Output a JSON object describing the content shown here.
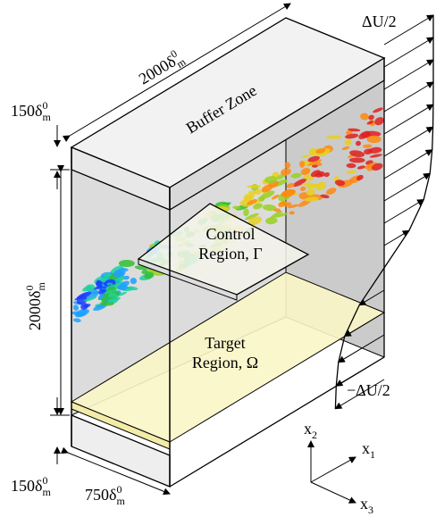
{
  "dimensions": {
    "streamwise": {
      "base": "2000δ",
      "sub": "m",
      "sup": "0"
    },
    "buffer_top": {
      "base": "150δ",
      "sub": "m",
      "sup": "0"
    },
    "height": {
      "base": "2000δ",
      "sub": "m",
      "sup": "0"
    },
    "buffer_bottom": {
      "base": "150δ",
      "sub": "m",
      "sup": "0"
    },
    "spanwise": {
      "base": "750δ",
      "sub": "m",
      "sup": "0"
    }
  },
  "velocity": {
    "top": "ΔU/2",
    "bottom": "−ΔU/2"
  },
  "regions": {
    "buffer": "Buffer Zone",
    "control": [
      "Control",
      "Region, Γ"
    ],
    "target": [
      "Target",
      "Region, Ω"
    ]
  },
  "axes": {
    "x2": {
      "base": "x",
      "sub": "2"
    },
    "x1": {
      "base": "x",
      "sub": "1"
    },
    "x3": {
      "base": "x",
      "sub": "3"
    }
  }
}
